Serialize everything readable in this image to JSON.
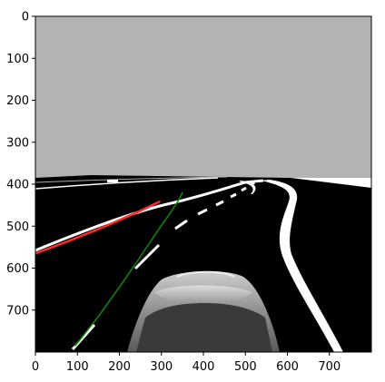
{
  "figure": {
    "image_extent": {
      "x": [
        0,
        800
      ],
      "y": [
        800,
        0
      ]
    },
    "x_axis": {
      "ticks": [
        0,
        100,
        200,
        300,
        400,
        500,
        600,
        700
      ],
      "labels": [
        "0",
        "100",
        "200",
        "300",
        "400",
        "500",
        "600",
        "700"
      ]
    },
    "y_axis": {
      "ticks": [
        0,
        100,
        200,
        300,
        400,
        500,
        600,
        700
      ],
      "labels": [
        "0",
        "100",
        "200",
        "300",
        "400",
        "500",
        "600",
        "700"
      ]
    },
    "overlays": [
      {
        "color": "#ff2a2a",
        "points": [
          [
            0,
            565
          ],
          [
            80,
            535
          ],
          [
            160,
            503
          ],
          [
            240,
            468
          ],
          [
            295,
            442
          ]
        ]
      },
      {
        "color": "#0a8a0a",
        "points": [
          [
            95,
            785
          ],
          [
            150,
            715
          ],
          [
            200,
            645
          ],
          [
            245,
            580
          ],
          [
            285,
            520
          ],
          [
            320,
            470
          ],
          [
            340,
            440
          ],
          [
            350,
            420
          ]
        ]
      }
    ],
    "colors": {
      "sky": "#b3b3b3",
      "road": "#000000",
      "marking": "#ffffff",
      "axes": "#000000"
    }
  }
}
